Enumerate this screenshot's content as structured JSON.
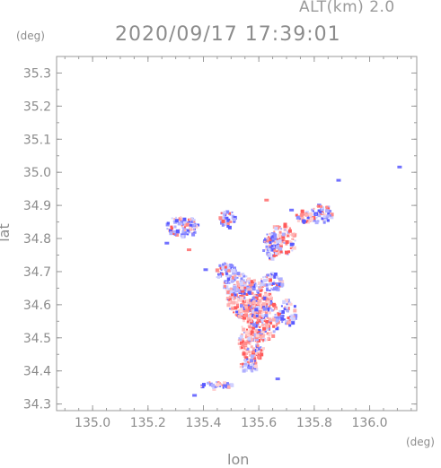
{
  "header": {
    "altitude_label": "ALT(km)  2.0",
    "timestamp": "2020/09/17 17:39:01"
  },
  "chart_data": {
    "type": "heatmap",
    "title": "2020/09/17 17:39:01",
    "xlabel": "lon",
    "ylabel": "lat",
    "x_unit": "(deg)",
    "y_unit": "(deg)",
    "xlim": [
      134.87,
      136.17
    ],
    "ylim": [
      34.28,
      35.35
    ],
    "xticks": [
      "135.0",
      "135.2",
      "135.4",
      "135.6",
      "135.8",
      "136.0"
    ],
    "xtick_values": [
      135.0,
      135.2,
      135.4,
      135.6,
      135.8,
      136.0
    ],
    "yticks": [
      "34.3",
      "34.4",
      "34.5",
      "34.6",
      "34.7",
      "34.8",
      "34.9",
      "35.0",
      "35.1",
      "35.2",
      "35.3"
    ],
    "ytick_values": [
      34.3,
      34.4,
      34.5,
      34.6,
      34.7,
      34.8,
      34.9,
      35.0,
      35.1,
      35.2,
      35.3
    ],
    "grid": false,
    "colors": {
      "positive": "#ff6060",
      "negative": "#6a6aff",
      "axis": "#9a9a9a"
    },
    "echo_regions": [
      {
        "lon": 135.56,
        "lat": 34.62,
        "rlon": 0.08,
        "rlat": 0.06,
        "sign": 1,
        "density": 0.7
      },
      {
        "lon": 135.6,
        "lat": 34.56,
        "rlon": 0.07,
        "rlat": 0.07,
        "sign": 1,
        "density": 0.65
      },
      {
        "lon": 135.52,
        "lat": 34.66,
        "rlon": 0.05,
        "rlat": 0.04,
        "sign": -1,
        "density": 0.5
      },
      {
        "lon": 135.57,
        "lat": 34.48,
        "rlon": 0.05,
        "rlat": 0.05,
        "sign": 1,
        "density": 0.55
      },
      {
        "lon": 135.56,
        "lat": 34.42,
        "rlon": 0.03,
        "rlat": 0.02,
        "sign": -1,
        "density": 0.55
      },
      {
        "lon": 135.64,
        "lat": 34.67,
        "rlon": 0.04,
        "rlat": 0.03,
        "sign": -1,
        "density": 0.45
      },
      {
        "lon": 135.68,
        "lat": 34.8,
        "rlon": 0.05,
        "rlat": 0.05,
        "sign": 1,
        "density": 0.45
      },
      {
        "lon": 135.64,
        "lat": 34.78,
        "rlon": 0.03,
        "rlat": 0.04,
        "sign": -1,
        "density": 0.5
      },
      {
        "lon": 135.82,
        "lat": 34.88,
        "rlon": 0.04,
        "rlat": 0.03,
        "sign": -1,
        "density": 0.45
      },
      {
        "lon": 135.76,
        "lat": 34.87,
        "rlon": 0.03,
        "rlat": 0.02,
        "sign": 1,
        "density": 0.4
      },
      {
        "lon": 135.32,
        "lat": 34.84,
        "rlon": 0.06,
        "rlat": 0.03,
        "sign": -1,
        "density": 0.55
      },
      {
        "lon": 135.48,
        "lat": 34.7,
        "rlon": 0.04,
        "rlat": 0.03,
        "sign": -1,
        "density": 0.35
      },
      {
        "lon": 135.7,
        "lat": 34.58,
        "rlon": 0.03,
        "rlat": 0.04,
        "sign": -1,
        "density": 0.3
      },
      {
        "lon": 135.44,
        "lat": 34.36,
        "rlon": 0.06,
        "rlat": 0.01,
        "sign": -1,
        "density": 0.4
      },
      {
        "lon": 135.48,
        "lat": 34.86,
        "rlon": 0.03,
        "rlat": 0.03,
        "sign": -1,
        "density": 0.25
      }
    ],
    "isolated_points": [
      {
        "lon": 136.1,
        "lat": 35.02,
        "sign": -1
      },
      {
        "lon": 135.88,
        "lat": 34.98,
        "sign": -1
      },
      {
        "lon": 135.36,
        "lat": 34.33,
        "sign": -1
      },
      {
        "lon": 135.47,
        "lat": 34.36,
        "sign": -1
      },
      {
        "lon": 135.34,
        "lat": 34.77,
        "sign": 1
      },
      {
        "lon": 135.26,
        "lat": 34.79,
        "sign": -1
      },
      {
        "lon": 135.62,
        "lat": 34.92,
        "sign": 1
      },
      {
        "lon": 135.71,
        "lat": 34.89,
        "sign": -1
      },
      {
        "lon": 135.66,
        "lat": 34.38,
        "sign": -1
      },
      {
        "lon": 135.4,
        "lat": 34.71,
        "sign": -1
      }
    ]
  }
}
